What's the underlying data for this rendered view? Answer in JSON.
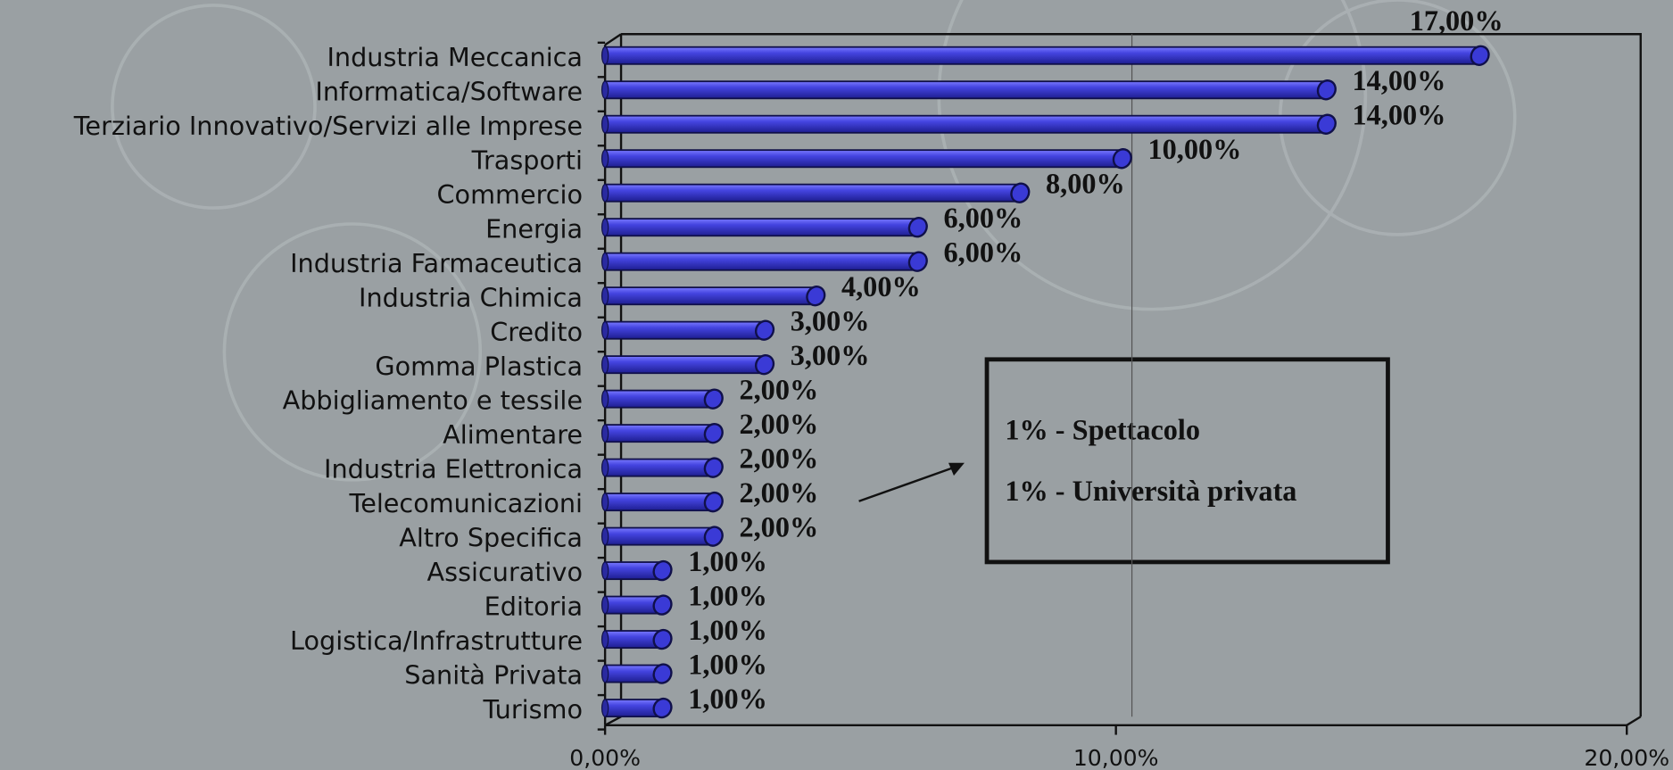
{
  "chart_data": {
    "type": "bar",
    "orientation": "horizontal",
    "categories": [
      "Industria Meccanica",
      "Informatica/Software",
      "Terziario Innovativo/Servizi alle Imprese",
      "Trasporti",
      "Commercio",
      "Energia",
      "Industria Farmaceutica",
      "Industria Chimica",
      "Credito",
      "Gomma Plastica",
      "Abbigliamento e tessile",
      "Alimentare",
      "Industria Elettronica",
      "Telecomunicazioni",
      "Altro Specifica",
      "Assicurativo",
      "Editoria",
      "Logistica/Infrastrutture",
      "Sanità Privata",
      "Turismo"
    ],
    "values": [
      17,
      14,
      14,
      10,
      8,
      6,
      6,
      4,
      3,
      3,
      2,
      2,
      2,
      2,
      2,
      1,
      1,
      1,
      1,
      1
    ],
    "value_labels": [
      "17,00%",
      "14,00%",
      "14,00%",
      "10,00%",
      "8,00%",
      "6,00%",
      "6,00%",
      "4,00%",
      "3,00%",
      "3,00%",
      "2,00%",
      "2,00%",
      "2,00%",
      "2,00%",
      "2,00%",
      "1,00%",
      "1,00%",
      "1,00%",
      "1,00%",
      "1,00%"
    ],
    "color": "#3a3ad6",
    "xlim": [
      0,
      20
    ],
    "xticks": [
      {
        "value": 0,
        "label": "0,00%"
      },
      {
        "value": 10,
        "label": "10,00%"
      },
      {
        "value": 20,
        "label": "20,00%"
      }
    ],
    "grid": true,
    "annotations": [
      "1% - Spettacolo",
      "1% - Università privata"
    ]
  }
}
